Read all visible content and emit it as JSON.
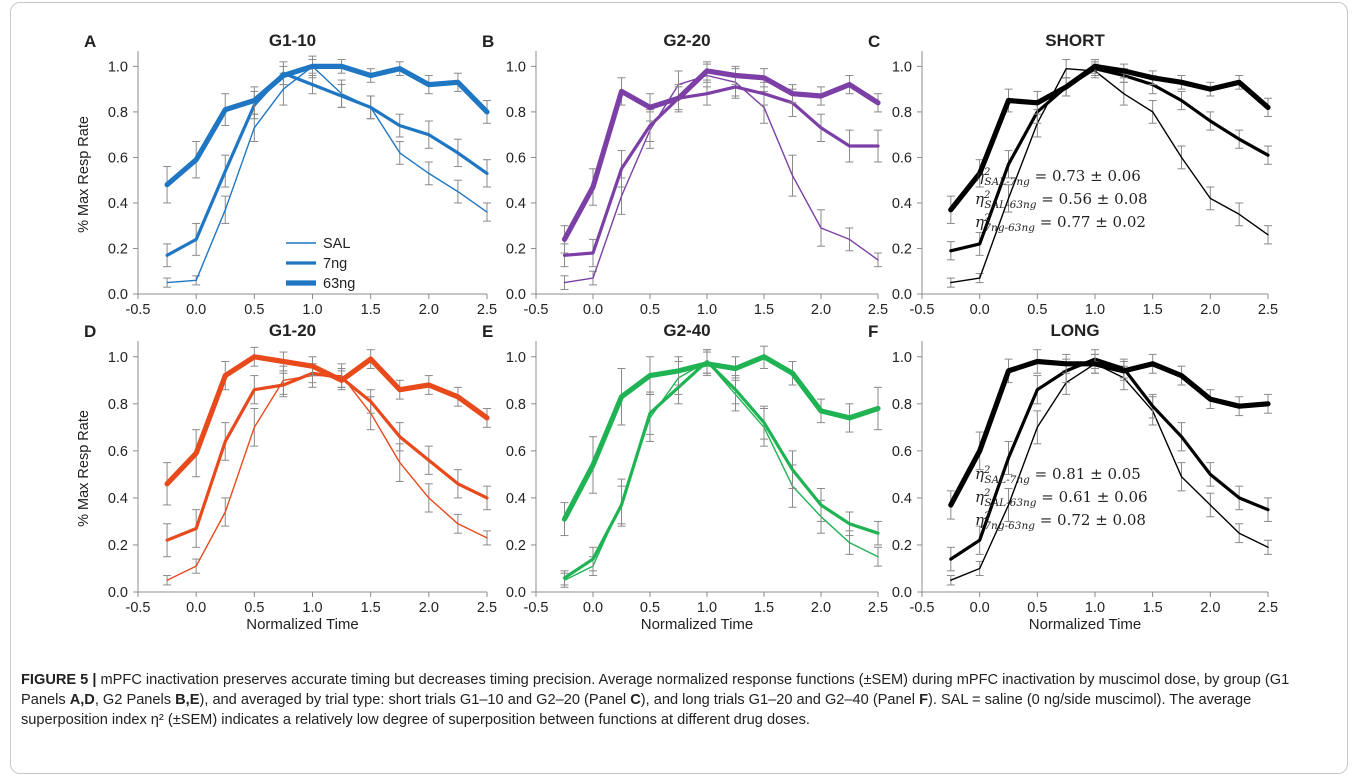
{
  "figure": {
    "caption_label": "FIGURE 5 |",
    "caption_parts": [
      {
        "t": " mPFC inactivation preserves accurate timing but decreases timing precision. Average normalized response functions (±SEM) during mPFC inactivation by muscimol dose, by group (G1 Panels ",
        "b": false
      },
      {
        "t": "A,D",
        "b": true
      },
      {
        "t": ", G2 Panels ",
        "b": false
      },
      {
        "t": "B,E",
        "b": true
      },
      {
        "t": "), and averaged by trial type: short trials G1–10 and G2–20 (Panel ",
        "b": false
      },
      {
        "t": "C",
        "b": true
      },
      {
        "t": "), and long trials G1–20 and G2–40 (Panel ",
        "b": false
      },
      {
        "t": "F",
        "b": true
      },
      {
        "t": "). SAL = saline (0 ng/side muscimol). The average superposition index η² (±SEM) indicates a relatively low degree of superposition between functions at different drug doses.",
        "b": false
      }
    ]
  },
  "chart_data": [
    {
      "panel": "A",
      "title": "G1-10",
      "type": "line",
      "color": "#1f77c4",
      "xlabel": "",
      "ylabel": "% Max Resp Rate",
      "xlim": [
        -0.5,
        2.5
      ],
      "ylim": [
        0.0,
        1.05
      ],
      "x": [
        -0.25,
        0.0,
        0.25,
        0.5,
        0.75,
        1.0,
        1.25,
        1.5,
        1.75,
        2.0,
        2.25,
        2.5
      ],
      "series": [
        {
          "name": "SAL",
          "values": [
            0.05,
            0.06,
            0.37,
            0.73,
            0.9,
            1.0,
            0.88,
            0.82,
            0.62,
            0.53,
            0.45,
            0.36
          ],
          "err": [
            0.02,
            0.02,
            0.06,
            0.06,
            0.07,
            0.05,
            0.06,
            0.05,
            0.05,
            0.05,
            0.05,
            0.04
          ]
        },
        {
          "name": "7ng",
          "values": [
            0.17,
            0.24,
            0.54,
            0.83,
            0.97,
            0.92,
            0.87,
            0.82,
            0.74,
            0.7,
            0.62,
            0.53
          ],
          "err": [
            0.05,
            0.07,
            0.07,
            0.06,
            0.05,
            0.04,
            0.05,
            0.05,
            0.05,
            0.06,
            0.06,
            0.06
          ]
        },
        {
          "name": "63ng",
          "values": [
            0.48,
            0.59,
            0.81,
            0.85,
            0.96,
            1.0,
            1.0,
            0.96,
            0.99,
            0.92,
            0.93,
            0.8
          ],
          "err": [
            0.08,
            0.08,
            0.07,
            0.06,
            0.04,
            0.03,
            0.03,
            0.03,
            0.03,
            0.04,
            0.04,
            0.05
          ]
        }
      ],
      "legend": [
        "SAL",
        "7ng",
        "63ng"
      ]
    },
    {
      "panel": "B",
      "title": "G2-20",
      "type": "line",
      "color": "#7b3fa6",
      "xlabel": "",
      "ylabel": "",
      "xlim": [
        -0.5,
        2.5
      ],
      "ylim": [
        0.0,
        1.05
      ],
      "x": [
        -0.25,
        0.0,
        0.25,
        0.5,
        0.75,
        1.0,
        1.25,
        1.5,
        1.75,
        2.0,
        2.25,
        2.5
      ],
      "series": [
        {
          "name": "SAL",
          "values": [
            0.05,
            0.07,
            0.43,
            0.72,
            0.92,
            0.96,
            0.93,
            0.82,
            0.52,
            0.29,
            0.24,
            0.15
          ],
          "err": [
            0.03,
            0.03,
            0.08,
            0.08,
            0.06,
            0.05,
            0.06,
            0.07,
            0.09,
            0.08,
            0.05,
            0.03
          ]
        },
        {
          "name": "7ng",
          "values": [
            0.17,
            0.18,
            0.55,
            0.74,
            0.86,
            0.88,
            0.91,
            0.88,
            0.84,
            0.73,
            0.65,
            0.65
          ],
          "err": [
            0.05,
            0.06,
            0.08,
            0.07,
            0.06,
            0.05,
            0.05,
            0.05,
            0.06,
            0.06,
            0.07,
            0.07
          ]
        },
        {
          "name": "63ng",
          "values": [
            0.24,
            0.47,
            0.89,
            0.82,
            0.86,
            0.98,
            0.96,
            0.95,
            0.88,
            0.87,
            0.92,
            0.84
          ],
          "err": [
            0.06,
            0.08,
            0.06,
            0.06,
            0.05,
            0.04,
            0.04,
            0.04,
            0.04,
            0.04,
            0.04,
            0.04
          ]
        }
      ],
      "legend": []
    },
    {
      "panel": "C",
      "title": "SHORT",
      "type": "line",
      "color": "#000000",
      "xlabel": "",
      "ylabel": "",
      "xlim": [
        -0.5,
        2.5
      ],
      "ylim": [
        0.0,
        1.05
      ],
      "x": [
        -0.25,
        0.0,
        0.25,
        0.5,
        0.75,
        1.0,
        1.25,
        1.5,
        1.75,
        2.0,
        2.25,
        2.5
      ],
      "series": [
        {
          "name": "SAL",
          "values": [
            0.05,
            0.07,
            0.42,
            0.75,
            0.99,
            0.98,
            0.88,
            0.8,
            0.6,
            0.42,
            0.35,
            0.26
          ],
          "err": [
            0.02,
            0.02,
            0.06,
            0.06,
            0.04,
            0.03,
            0.05,
            0.05,
            0.05,
            0.05,
            0.05,
            0.04
          ]
        },
        {
          "name": "7ng",
          "values": [
            0.19,
            0.22,
            0.57,
            0.8,
            0.91,
            0.99,
            0.96,
            0.92,
            0.85,
            0.76,
            0.68,
            0.61
          ],
          "err": [
            0.04,
            0.05,
            0.06,
            0.05,
            0.04,
            0.03,
            0.03,
            0.04,
            0.04,
            0.04,
            0.04,
            0.04
          ]
        },
        {
          "name": "63ng",
          "values": [
            0.37,
            0.53,
            0.85,
            0.84,
            0.91,
            1.0,
            0.98,
            0.95,
            0.93,
            0.9,
            0.93,
            0.82
          ],
          "err": [
            0.06,
            0.06,
            0.05,
            0.05,
            0.04,
            0.03,
            0.03,
            0.03,
            0.03,
            0.03,
            0.03,
            0.04
          ]
        }
      ],
      "legend": [],
      "annotations": [
        {
          "sub": "SAL-7ng",
          "value": " = 0.73 ± 0.06"
        },
        {
          "sub": "SAL-63ng",
          "value": " = 0.56 ± 0.08"
        },
        {
          "sub": "7ng-63ng",
          "value": " = 0.77 ± 0.02"
        }
      ]
    },
    {
      "panel": "D",
      "title": "G1-20",
      "type": "line",
      "color": "#e84a1c",
      "xlabel": "Normalized Time",
      "ylabel": "% Max Resp Rate",
      "xlim": [
        -0.5,
        2.5
      ],
      "ylim": [
        0.0,
        1.05
      ],
      "x": [
        -0.25,
        0.0,
        0.25,
        0.5,
        0.75,
        1.0,
        1.25,
        1.5,
        1.75,
        2.0,
        2.25,
        2.5
      ],
      "series": [
        {
          "name": "SAL",
          "values": [
            0.05,
            0.11,
            0.34,
            0.7,
            0.9,
            0.92,
            0.92,
            0.76,
            0.55,
            0.4,
            0.29,
            0.23
          ],
          "err": [
            0.02,
            0.03,
            0.06,
            0.08,
            0.06,
            0.05,
            0.05,
            0.07,
            0.08,
            0.06,
            0.04,
            0.03
          ]
        },
        {
          "name": "7ng",
          "values": [
            0.22,
            0.27,
            0.64,
            0.86,
            0.88,
            0.93,
            0.91,
            0.81,
            0.66,
            0.56,
            0.46,
            0.4
          ],
          "err": [
            0.07,
            0.08,
            0.08,
            0.06,
            0.05,
            0.04,
            0.04,
            0.05,
            0.06,
            0.06,
            0.06,
            0.05
          ]
        },
        {
          "name": "63ng",
          "values": [
            0.46,
            0.59,
            0.92,
            1.0,
            0.98,
            0.96,
            0.9,
            0.99,
            0.86,
            0.88,
            0.83,
            0.74
          ],
          "err": [
            0.09,
            0.1,
            0.06,
            0.04,
            0.04,
            0.04,
            0.04,
            0.04,
            0.04,
            0.04,
            0.04,
            0.04
          ]
        }
      ],
      "legend": []
    },
    {
      "panel": "E",
      "title": "G2-40",
      "type": "line",
      "color": "#1fb354",
      "xlabel": "Normalized Time",
      "ylabel": "",
      "xlim": [
        -0.5,
        2.5
      ],
      "ylim": [
        0.0,
        1.05
      ],
      "x": [
        -0.25,
        0.0,
        0.25,
        0.5,
        0.75,
        1.0,
        1.25,
        1.5,
        1.75,
        2.0,
        2.25,
        2.5
      ],
      "series": [
        {
          "name": "SAL",
          "values": [
            0.05,
            0.11,
            0.38,
            0.74,
            0.91,
            0.98,
            0.84,
            0.7,
            0.45,
            0.32,
            0.21,
            0.15
          ],
          "err": [
            0.03,
            0.04,
            0.1,
            0.1,
            0.07,
            0.05,
            0.07,
            0.08,
            0.09,
            0.07,
            0.05,
            0.04
          ]
        },
        {
          "name": "7ng",
          "values": [
            0.06,
            0.14,
            0.37,
            0.76,
            0.87,
            0.98,
            0.86,
            0.72,
            0.52,
            0.37,
            0.29,
            0.25
          ],
          "err": [
            0.03,
            0.05,
            0.08,
            0.09,
            0.07,
            0.05,
            0.06,
            0.07,
            0.08,
            0.07,
            0.05,
            0.05
          ]
        },
        {
          "name": "63ng",
          "values": [
            0.31,
            0.54,
            0.83,
            0.92,
            0.94,
            0.97,
            0.95,
            1.0,
            0.93,
            0.77,
            0.74,
            0.78
          ],
          "err": [
            0.07,
            0.12,
            0.12,
            0.08,
            0.06,
            0.05,
            0.05,
            0.05,
            0.05,
            0.05,
            0.06,
            0.09
          ]
        }
      ],
      "legend": []
    },
    {
      "panel": "F",
      "title": "LONG",
      "type": "line",
      "color": "#000000",
      "xlabel": "Normalized Time",
      "ylabel": "",
      "xlim": [
        -0.5,
        2.5
      ],
      "ylim": [
        0.0,
        1.05
      ],
      "x": [
        -0.25,
        0.0,
        0.25,
        0.5,
        0.75,
        1.0,
        1.25,
        1.5,
        1.75,
        2.0,
        2.25,
        2.5
      ],
      "series": [
        {
          "name": "SAL",
          "values": [
            0.05,
            0.1,
            0.37,
            0.7,
            0.89,
            0.97,
            0.91,
            0.77,
            0.49,
            0.37,
            0.25,
            0.19
          ],
          "err": [
            0.02,
            0.03,
            0.07,
            0.07,
            0.05,
            0.04,
            0.05,
            0.06,
            0.06,
            0.05,
            0.04,
            0.03
          ]
        },
        {
          "name": "7ng",
          "values": [
            0.14,
            0.22,
            0.57,
            0.86,
            0.94,
            0.99,
            0.95,
            0.79,
            0.66,
            0.5,
            0.4,
            0.35
          ],
          "err": [
            0.05,
            0.06,
            0.07,
            0.06,
            0.05,
            0.04,
            0.04,
            0.05,
            0.06,
            0.05,
            0.05,
            0.05
          ]
        },
        {
          "name": "63ng",
          "values": [
            0.37,
            0.6,
            0.94,
            0.98,
            0.97,
            0.97,
            0.94,
            0.97,
            0.92,
            0.82,
            0.79,
            0.8
          ],
          "err": [
            0.06,
            0.08,
            0.05,
            0.05,
            0.04,
            0.04,
            0.04,
            0.04,
            0.04,
            0.04,
            0.04,
            0.04
          ]
        }
      ],
      "legend": [],
      "annotations": [
        {
          "sub": "SAL-7ng",
          "value": " = 0.81 ± 0.05"
        },
        {
          "sub": "SAL-63ng",
          "value": " = 0.61 ± 0.06"
        },
        {
          "sub": "7ng-63ng",
          "value": " = 0.72 ± 0.08"
        }
      ]
    }
  ],
  "common": {
    "xticks": [
      -0.5,
      0.0,
      0.5,
      1.0,
      1.5,
      2.0,
      2.5
    ],
    "xtick_labels": [
      "-0.5",
      "0.0",
      "0.5",
      "1.0",
      "1.5",
      "2.0",
      "2.5"
    ],
    "yticks": [
      0.0,
      0.2,
      0.4,
      0.6,
      0.8,
      1.0
    ],
    "ytick_labels": [
      "0.0",
      "0.2",
      "0.4",
      "0.6",
      "0.8",
      "1.0"
    ],
    "eta_symbol": "η",
    "eta_exp": "2"
  }
}
